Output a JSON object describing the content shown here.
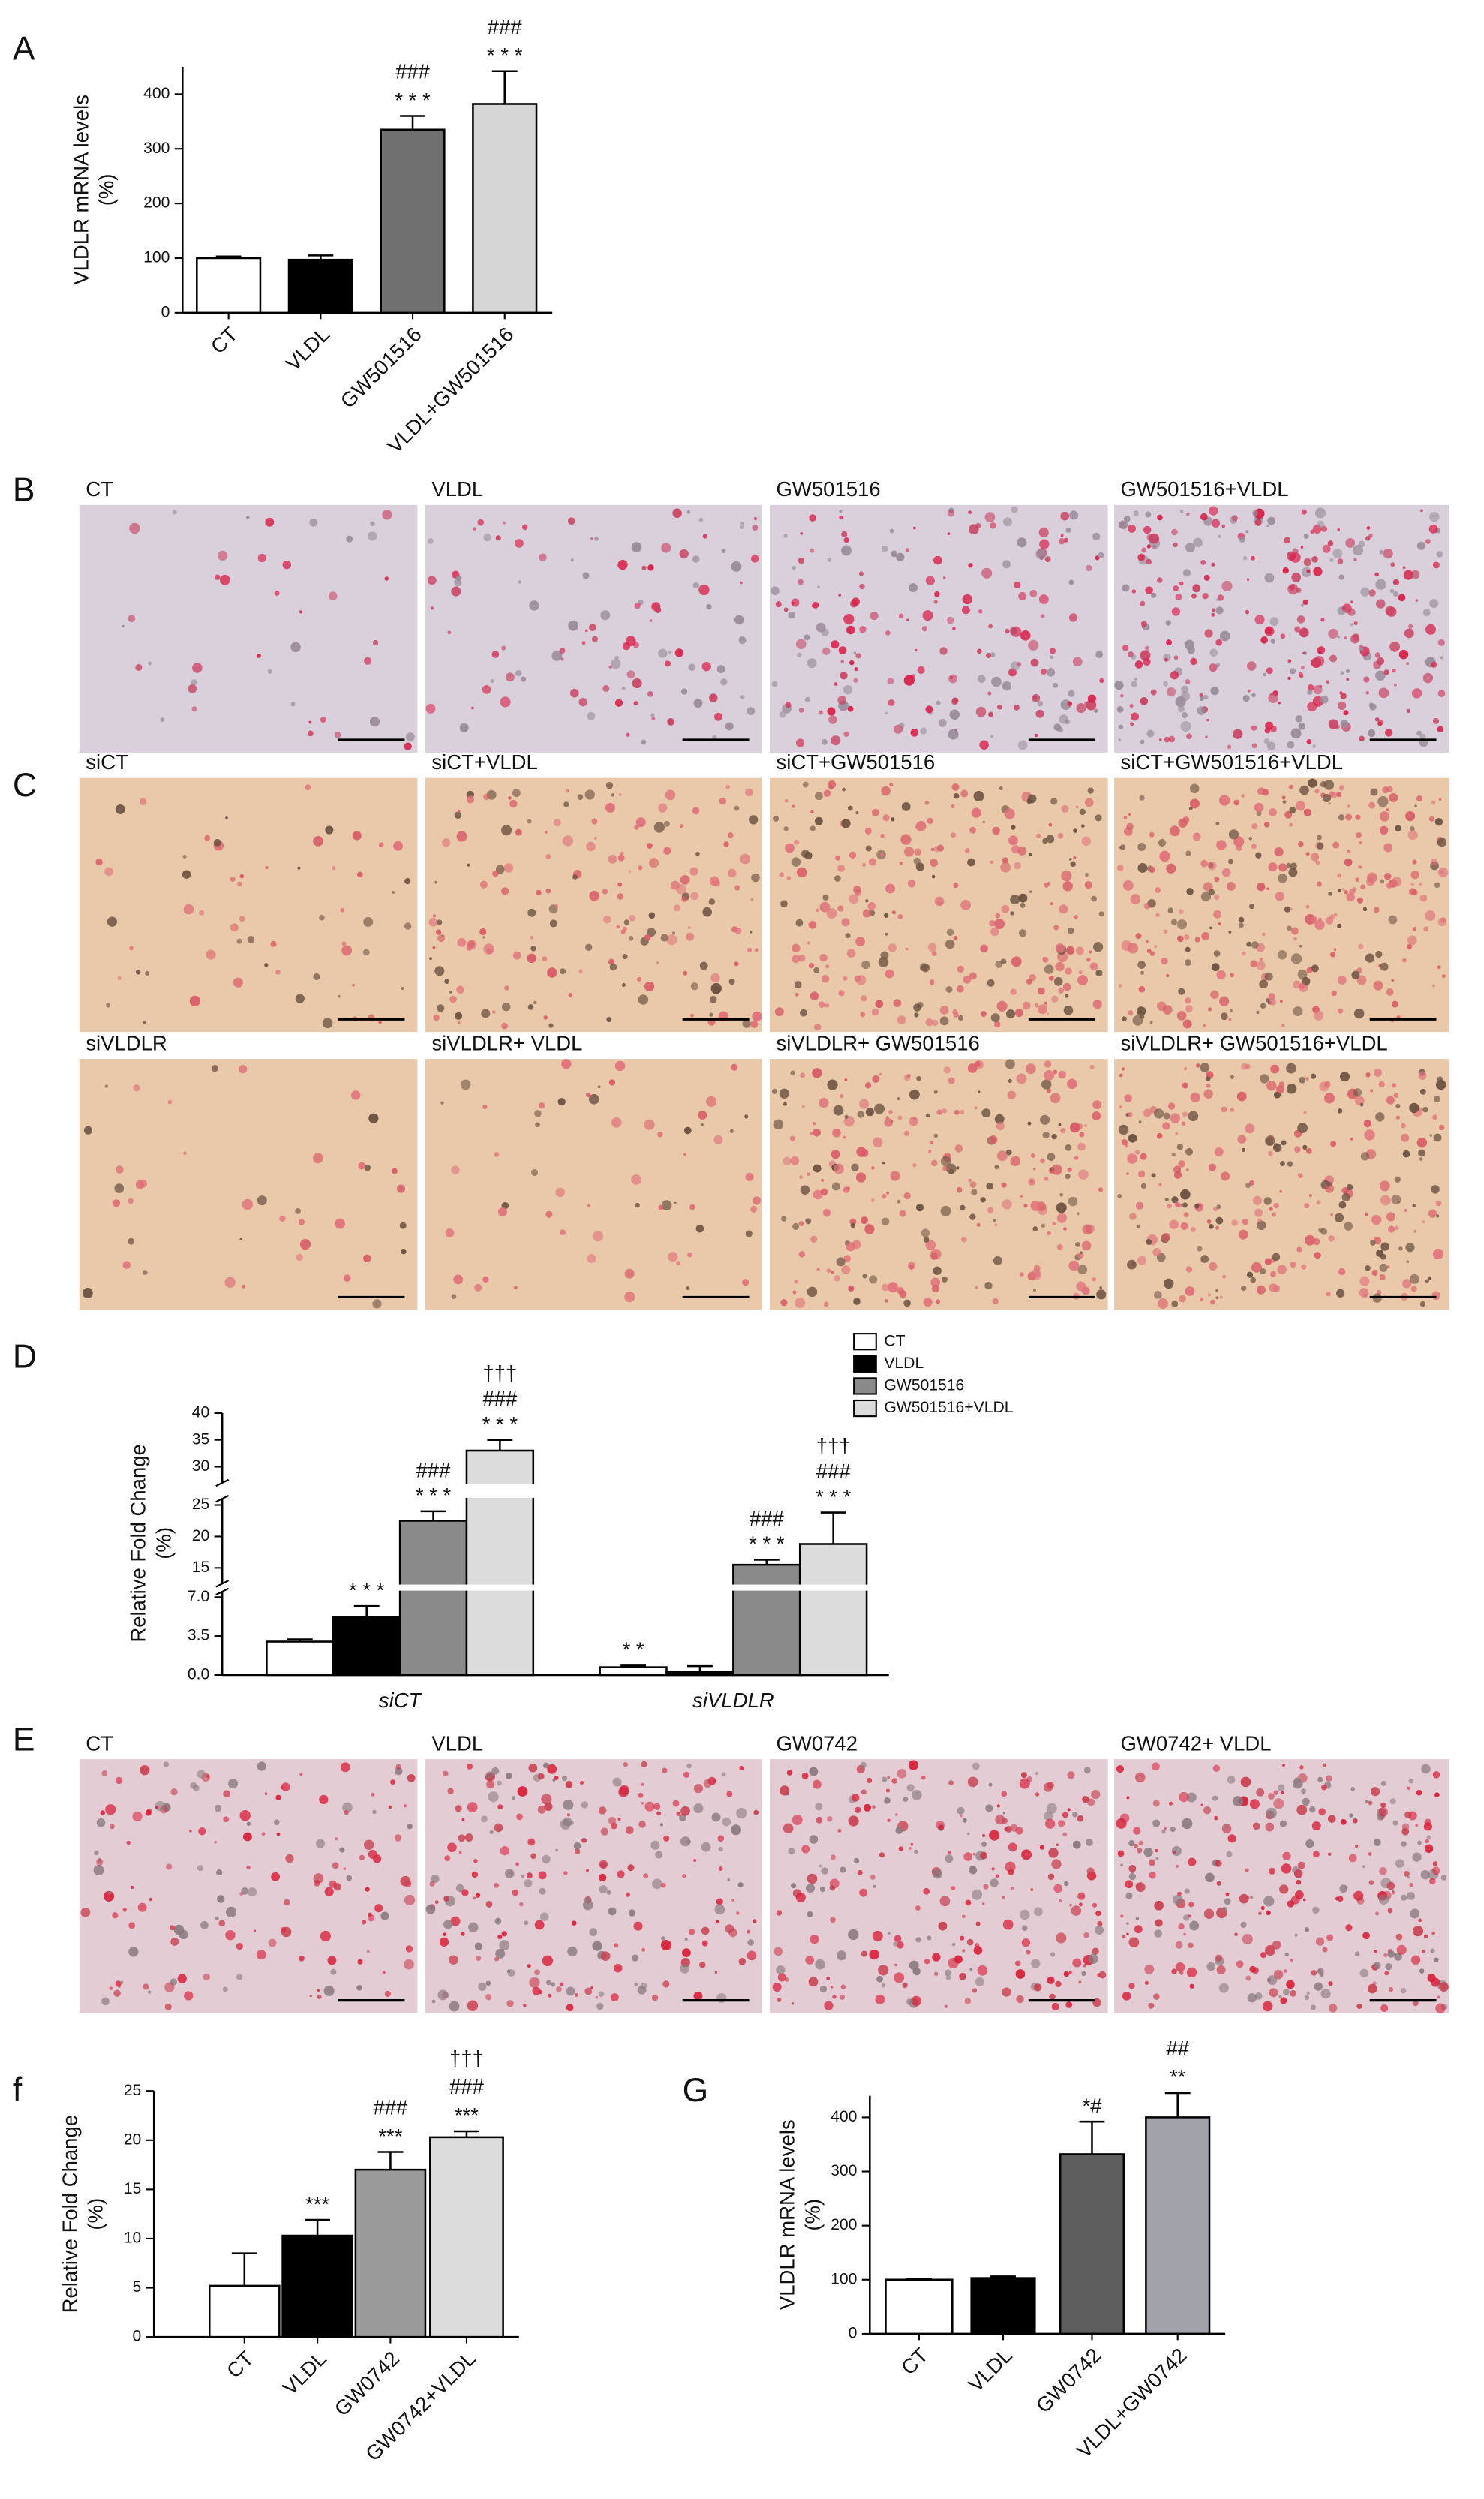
{
  "panel_labels": [
    "A",
    "B",
    "C",
    "D",
    "E",
    "f",
    "G"
  ],
  "image_panels": [
    {
      "labels": [
        "CT",
        "VLDL",
        "GW501516",
        "GW501516+VLDL"
      ]
    },
    {
      "labels": [
        "siCT",
        "siCT+VLDL",
        "siCT+GW501516",
        "siCT+GW501516+VLDL",
        "siVLDLR",
        "siVLDLR+ VLDL",
        "siVLDLR+ GW501516",
        "siVLDLR+ GW501516+VLDL"
      ]
    },
    {
      "labels": [
        "CT",
        "VLDL",
        "GW0742",
        "GW0742+ VLDL"
      ]
    }
  ],
  "chart_data": [
    {
      "type": "bar",
      "ylabel": [
        "VLDLR mRNA levels",
        "(%)"
      ],
      "categories": [
        "CT",
        "VLDL",
        "GW501516",
        "VLDL+GW501516"
      ],
      "values": [
        100,
        97,
        335,
        382
      ],
      "errors": [
        3,
        8,
        25,
        60
      ],
      "colors": [
        "#ffffff",
        "#000000",
        "#707070",
        "#d6d6d6"
      ],
      "annotations": [
        [],
        [],
        [
          "* * *",
          "###"
        ],
        [
          "* * *",
          "###"
        ]
      ],
      "ylim": [
        0,
        450
      ],
      "yticks": [
        0,
        100,
        200,
        300,
        400
      ]
    },
    {
      "type": "broken_bar",
      "ylabel": [
        "Relative Fold Change",
        "(%)"
      ],
      "categories": [
        "siCT",
        "siVLDLR"
      ],
      "series": [
        {
          "name": "CT",
          "color": "#ffffff",
          "values": [
            3.0,
            0.7
          ],
          "errors": [
            0.2,
            0.15
          ],
          "annotations": [
            [],
            [
              "* *"
            ]
          ]
        },
        {
          "name": "VLDL",
          "color": "#000000",
          "values": [
            5.2,
            0.3
          ],
          "errors": [
            1.0,
            0.5
          ],
          "annotations": [
            [
              "* * *"
            ],
            []
          ]
        },
        {
          "name": "GW501516",
          "color": "#8a8a8a",
          "values": [
            22.5,
            15.5
          ],
          "errors": [
            1.5,
            0.8
          ],
          "annotations": [
            [
              "* * *",
              "###"
            ],
            [
              "* * *",
              "###"
            ]
          ]
        },
        {
          "name": "GW501516+VLDL",
          "color": "#dcdcdc",
          "values": [
            33,
            18.8
          ],
          "errors": [
            2,
            5
          ],
          "annotations": [
            [
              "* * *",
              "###",
              "†††"
            ],
            [
              "* * *",
              "###",
              "†††"
            ]
          ]
        }
      ],
      "ysegments": [
        {
          "ylim": [
            0,
            7.5
          ],
          "yticks": [
            {
              "value": 0,
              "label": "0.0"
            },
            3.5,
            {
              "value": 7,
              "label": "7.0"
            }
          ]
        },
        {
          "ylim": [
            12.5,
            26
          ],
          "yticks": [
            15,
            20,
            25
          ]
        },
        {
          "ylim": [
            27,
            40
          ],
          "yticks": [
            30,
            35,
            40
          ]
        }
      ],
      "legend": "upper right"
    },
    {
      "type": "bar",
      "ylabel": [
        "Relative Fold Change",
        "(%)"
      ],
      "categories": [
        "CT",
        "VLDL",
        "GW0742",
        "GW0742+VLDL"
      ],
      "values": [
        5.2,
        10.3,
        17,
        20.3
      ],
      "errors": [
        3.3,
        1.6,
        1.8,
        0.6
      ],
      "colors": [
        "#ffffff",
        "#000000",
        "#9a9a9a",
        "#dcdcdc"
      ],
      "annotations": [
        [],
        [
          "***"
        ],
        [
          "***",
          "###"
        ],
        [
          "***",
          "###",
          "†††"
        ]
      ],
      "ylim": [
        0,
        25
      ],
      "yticks": [
        0,
        5,
        10,
        15,
        20,
        25
      ]
    },
    {
      "type": "bar",
      "ylabel": [
        "VLDLR mRNA levels",
        "(%)"
      ],
      "categories": [
        "CT",
        "VLDL",
        "GW0742",
        "VLDL+GW0742"
      ],
      "values": [
        100,
        103,
        332,
        400
      ],
      "errors": [
        2,
        3,
        60,
        45
      ],
      "colors": [
        "#ffffff",
        "#000000",
        "#5e5e5e",
        "#a2a2aa"
      ],
      "annotations": [
        [],
        [],
        [
          "*#"
        ],
        [
          "**",
          "##"
        ]
      ],
      "ylim": [
        0,
        440
      ],
      "yticks": [
        0,
        100,
        200,
        300,
        400
      ]
    }
  ]
}
